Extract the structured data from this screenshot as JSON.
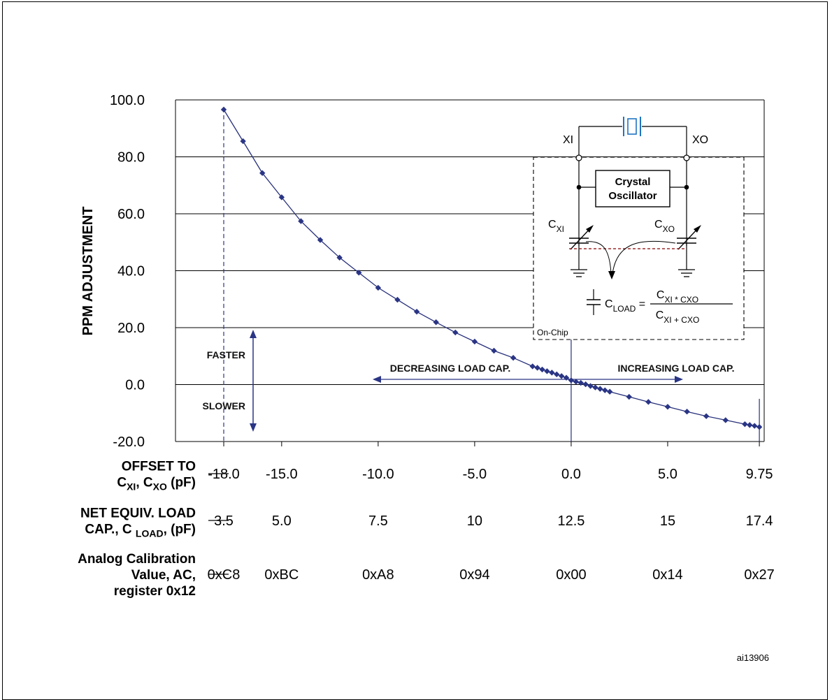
{
  "chart_data": {
    "type": "line",
    "ylabel": "PPM ADJUSTMENT",
    "ylim": [
      -20,
      100
    ],
    "xlim": [
      -20.5,
      10.0
    ],
    "yticks": [
      "100.0",
      "80.0",
      "60.0",
      "40.0",
      "20.0",
      "0.0",
      "-20.0"
    ],
    "ytick_values": [
      100,
      80,
      60,
      40,
      20,
      0,
      -20
    ],
    "grid": "horizontal",
    "series": [
      {
        "x": [
          -18.0,
          -17.0,
          -16.0,
          -15.0,
          -14.0,
          -13.0,
          -12.0,
          -11.0,
          -10.0,
          -9.0,
          -8.0,
          -7.0,
          -6.0,
          -5.0,
          -4.0,
          -3.0,
          -2.0,
          -1.75,
          -1.5,
          -1.25,
          -1.0,
          -0.75,
          -0.5,
          -0.25,
          0.0,
          0.25,
          0.5,
          0.75,
          1.0,
          1.25,
          1.5,
          1.75,
          2.0,
          3.0,
          4.0,
          5.0,
          6.0,
          7.0,
          8.0,
          9.0,
          9.25,
          9.5,
          9.75
        ],
        "y": [
          96.6,
          85.5,
          74.3,
          65.8,
          57.4,
          50.8,
          44.6,
          39.3,
          34.0,
          29.8,
          25.6,
          21.9,
          18.3,
          15.1,
          11.9,
          9.4,
          6.4,
          5.9,
          5.3,
          4.7,
          4.2,
          3.6,
          3.0,
          2.4,
          1.5,
          1.0,
          0.6,
          0.1,
          -0.5,
          -1.0,
          -1.5,
          -2.0,
          -2.5,
          -4.3,
          -6.1,
          -7.8,
          -9.5,
          -11.1,
          -12.5,
          -13.9,
          -14.2,
          -14.5,
          -14.9
        ]
      }
    ],
    "x_rows": [
      {
        "label_lines": [
          "OFFSET TO",
          "C_XI, C_XO (pF)"
        ],
        "values": [
          "-18.0",
          "-15.0",
          "-10.0",
          "-5.0",
          "0.0",
          "5.0",
          "9.75"
        ]
      },
      {
        "label_lines": [
          "NET EQUIV. LOAD",
          "CAP., C LOAD, (pF)"
        ],
        "values": [
          "3.5",
          "5.0",
          "7.5",
          "10",
          "12.5",
          "15",
          "17.4"
        ]
      },
      {
        "label_lines": [
          "Analog Calibration",
          "Value, AC,",
          "register 0x12"
        ],
        "values": [
          "0xC8",
          "0xBC",
          "0xA8",
          "0x94",
          "0x00",
          "0x14",
          "0x27"
        ]
      }
    ],
    "row_positions": [
      -18.0,
      -15.0,
      -10.0,
      -5.0,
      0.0,
      5.0,
      9.75
    ],
    "annotations": {
      "faster": "FASTER",
      "slower": "SLOWER",
      "decreasing": "DECREASING LOAD CAP.",
      "increasing": "INCREASING LOAD CAP."
    }
  },
  "inset": {
    "xi": "XI",
    "xo": "XO",
    "osc_line1": "Crystal",
    "osc_line2": "Oscillator",
    "cxi_main": "C",
    "cxi_sub": "XI",
    "cxo_main": "C",
    "cxo_sub": "XO",
    "on_chip": "On-Chip",
    "cload": "LOAD",
    "num": "XI * C",
    "den": "XI + C",
    "xo_sub": "XO"
  },
  "figure_id": "ai13906",
  "colors": {
    "curve": "#27307a",
    "marker": "#2a3585",
    "dashed_ref": "#2a3585",
    "annotation_arrow": "#2a3585",
    "load_line": "#8b0000",
    "crystal": "#1f75c2"
  }
}
